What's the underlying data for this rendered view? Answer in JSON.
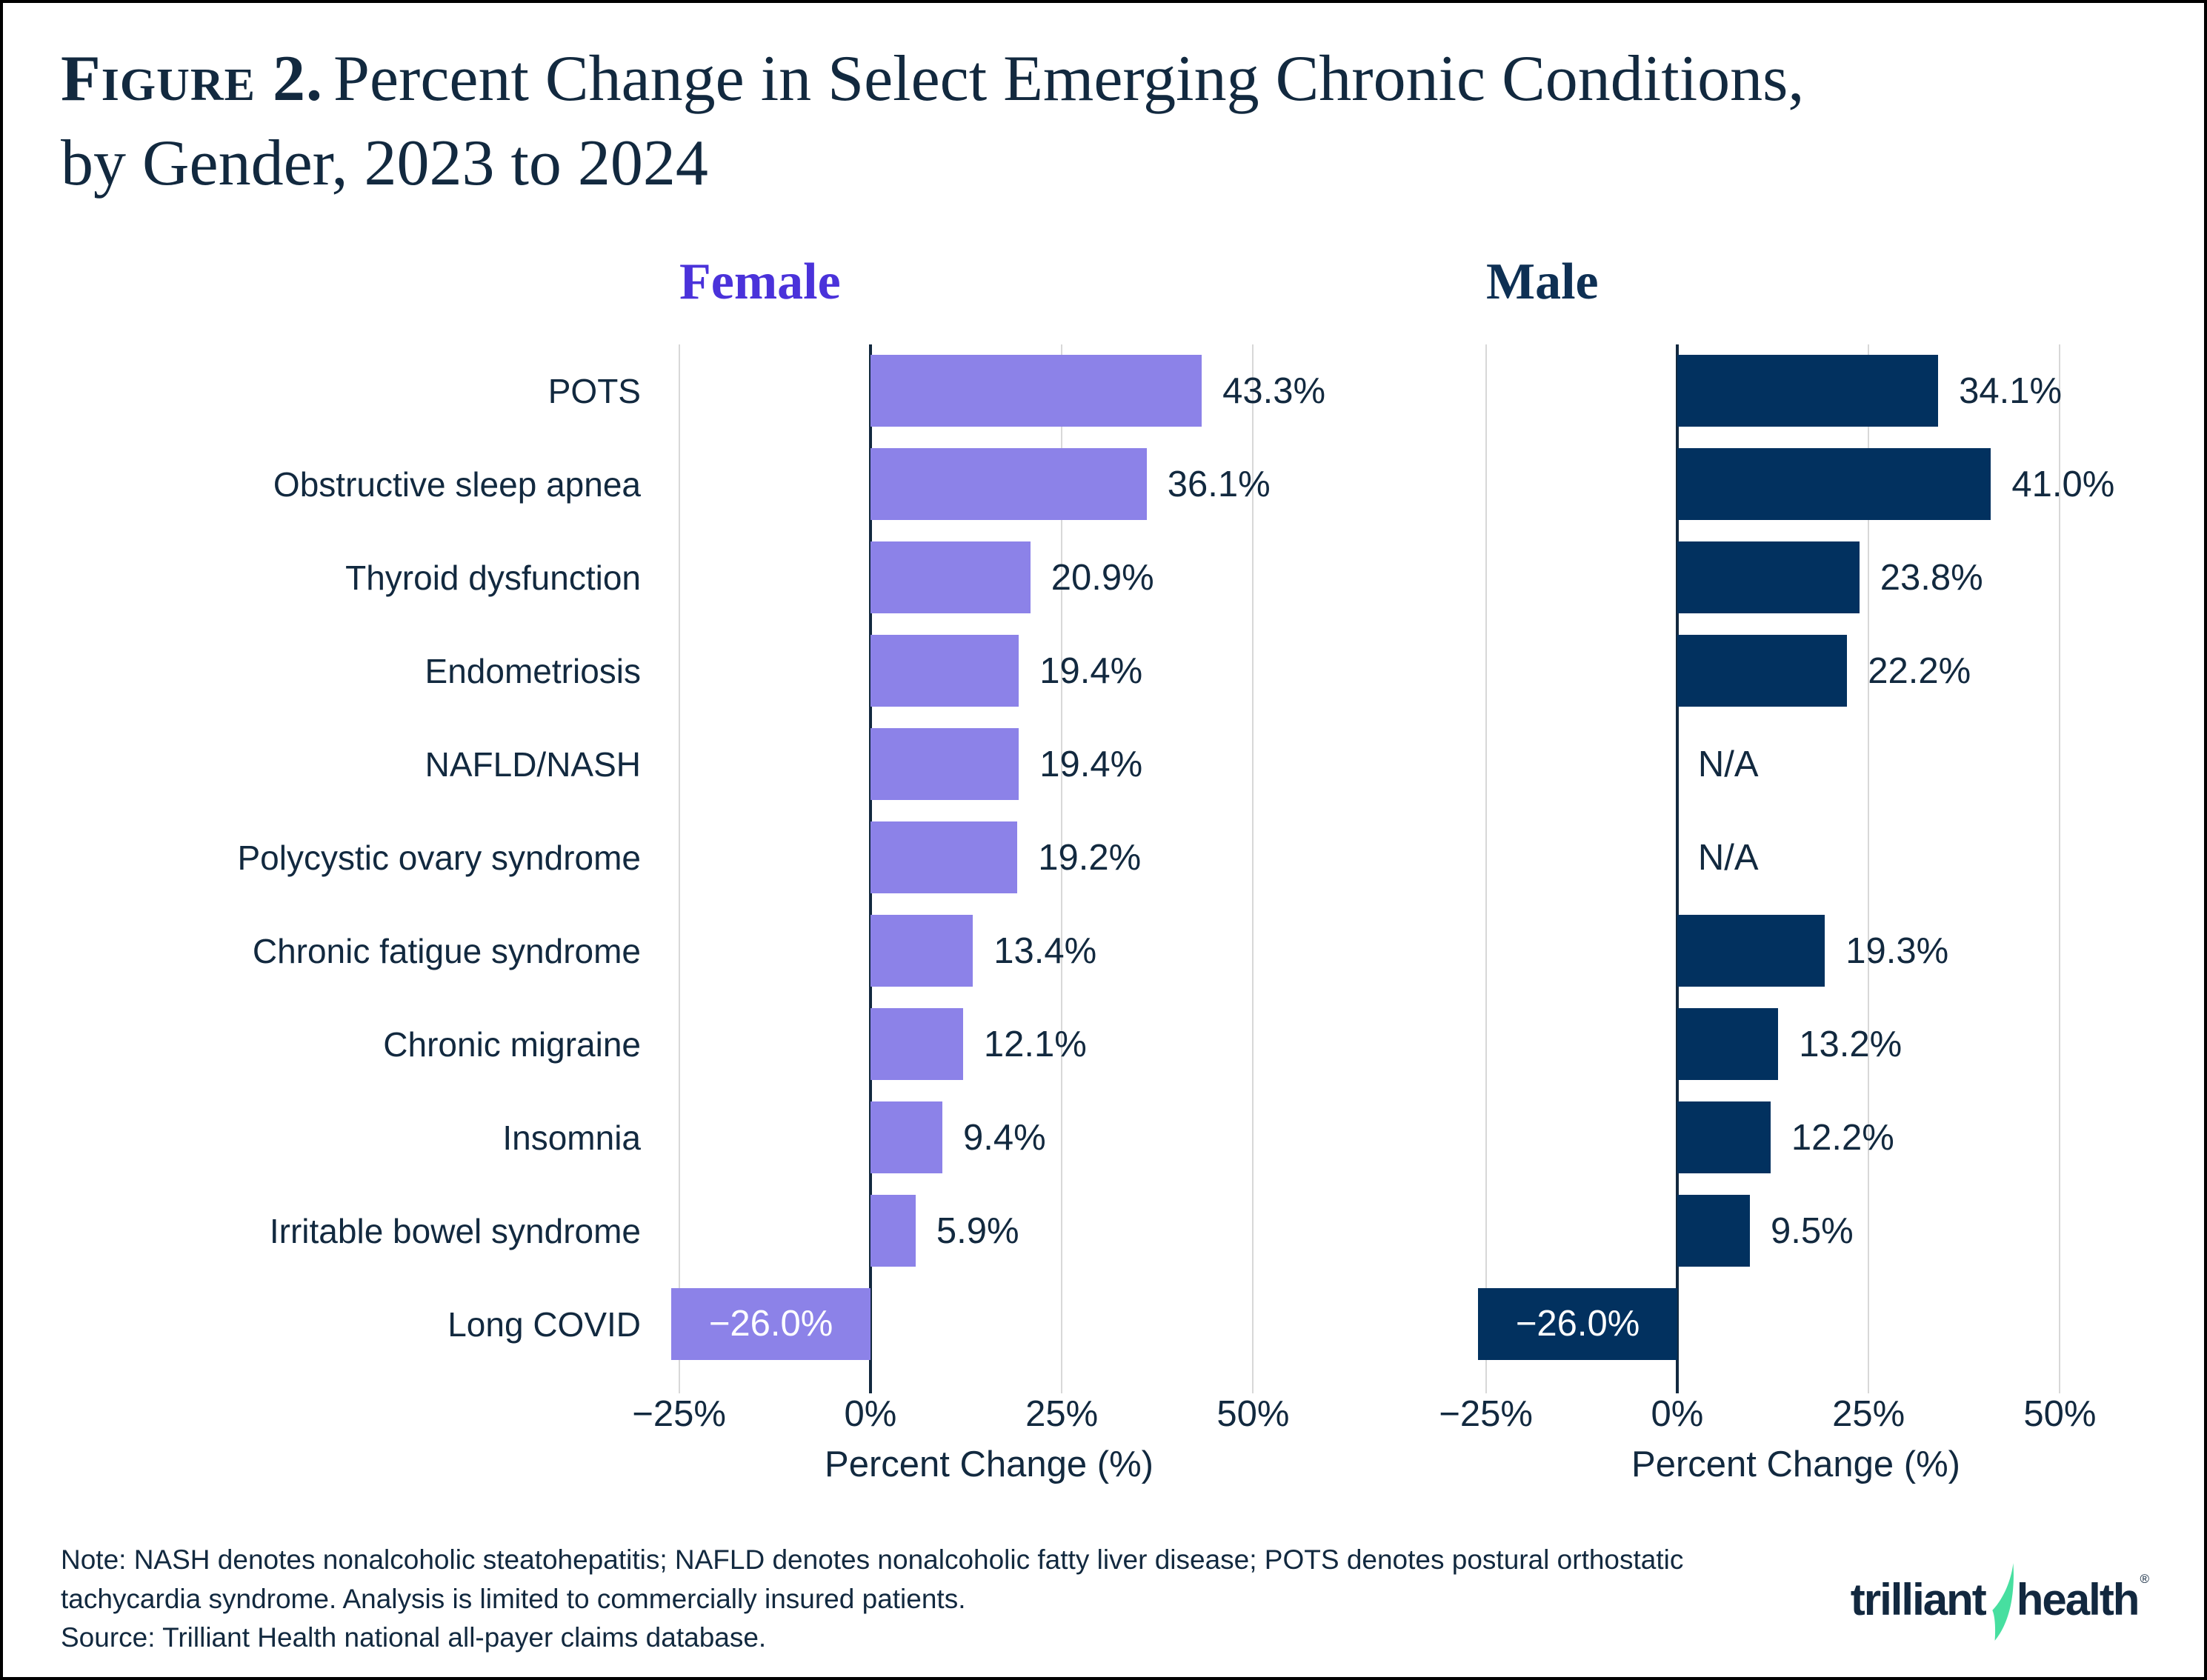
{
  "title": {
    "prefix": "Figure 2.",
    "line1": "Percent Change in Select Emerging Chronic Conditions,",
    "line2": "by Gender, 2023 to 2024"
  },
  "chart_data": {
    "type": "bar",
    "orientation": "horizontal",
    "categories": [
      "POTS",
      "Obstructive sleep apnea",
      "Thyroid dysfunction",
      "Endometriosis",
      "NAFLD/NASH",
      "Polycystic ovary syndrome",
      "Chronic fatigue syndrome",
      "Chronic migraine",
      "Insomnia",
      "Irritable bowel syndrome",
      "Long COVID"
    ],
    "series": [
      {
        "name": "Female",
        "color": "#8C82E8",
        "header_color": "#4A32DA",
        "values": [
          43.3,
          36.1,
          20.9,
          19.4,
          19.4,
          19.2,
          13.4,
          12.1,
          9.4,
          5.9,
          -26.0
        ],
        "labels": [
          "43.3%",
          "36.1%",
          "20.9%",
          "19.4%",
          "19.4%",
          "19.2%",
          "13.4%",
          "12.1%",
          "9.4%",
          "5.9%",
          "−26.0%"
        ]
      },
      {
        "name": "Male",
        "color": "#02315F",
        "header_color": "#0E3054",
        "values": [
          34.1,
          41.0,
          23.8,
          22.2,
          null,
          null,
          19.3,
          13.2,
          12.2,
          9.5,
          -26.0
        ],
        "labels": [
          "34.1%",
          "41.0%",
          "23.8%",
          "22.2%",
          "N/A",
          "N/A",
          "19.3%",
          "13.2%",
          "12.2%",
          "9.5%",
          "−26.0%"
        ]
      }
    ],
    "xlabel": "Percent Change (%)",
    "x_ticks": [
      -25,
      0,
      25,
      50
    ],
    "x_tick_labels": [
      "−25%",
      "0%",
      "25%",
      "50%"
    ],
    "xlim": [
      -30,
      61
    ],
    "grid": true,
    "gridline_color": "#D8D8D8",
    "zero_axis_color": "#12293F",
    "negative_label_color": "#FFFFFF",
    "legend_position": "panel-headers"
  },
  "notes": {
    "note": "Note: NASH denotes nonalcoholic steatohepatitis; NAFLD denotes nonalcoholic fatty liver disease; POTS denotes postural orthostatic tachycardia syndrome. Analysis is limited to commercially insured patients.",
    "source": "Source: Trilliant Health national all-payer claims database."
  },
  "logo": {
    "word1": "trilliant",
    "word2": "health",
    "registered": "®",
    "green": "#47DFA0",
    "navy": "#12283F"
  }
}
